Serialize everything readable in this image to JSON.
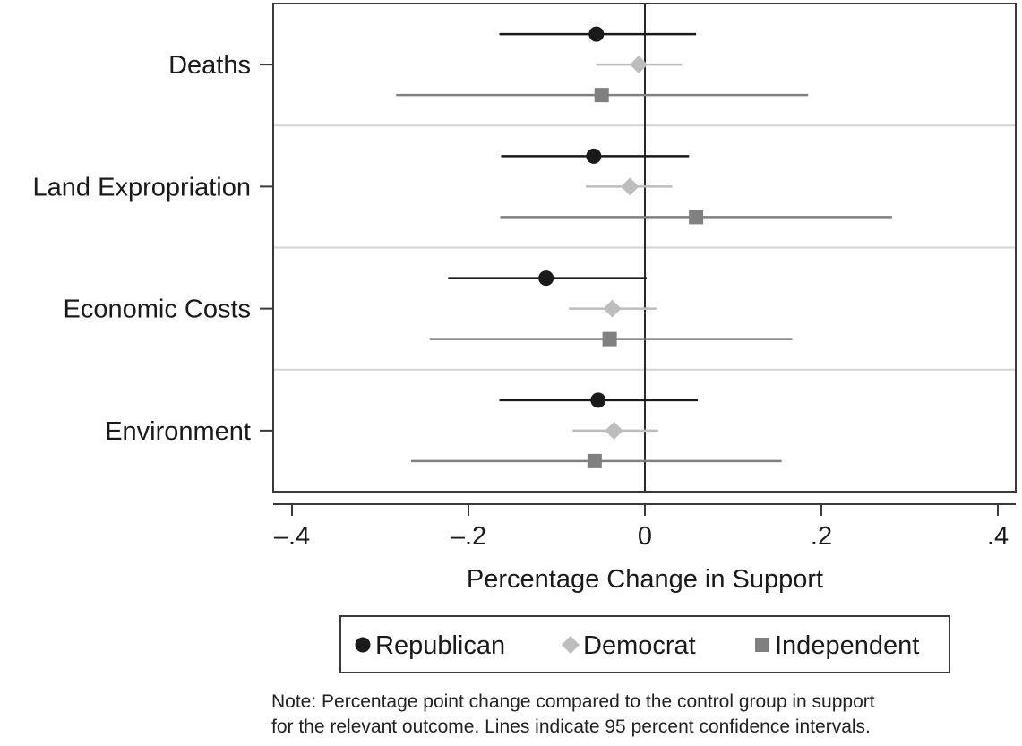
{
  "chart_data": {
    "type": "scatter",
    "subtype": "coefficient-plot-with-confidence-intervals",
    "xlabel": "Percentage Change in Support",
    "xlim": [
      -0.42,
      0.42
    ],
    "xticks": [
      {
        "value": -0.4,
        "label": "–.4"
      },
      {
        "value": -0.2,
        "label": "–.2"
      },
      {
        "value": 0,
        "label": "0"
      },
      {
        "value": 0.2,
        "label": ".2"
      },
      {
        "value": 0.4,
        "label": ".4"
      }
    ],
    "reference_line": 0,
    "categories": [
      "Deaths",
      "Land Expropriation",
      "Economic Costs",
      "Environment"
    ],
    "series": [
      {
        "name": "Republican",
        "marker": "circle",
        "color": "#1a1a1a",
        "values": [
          -0.055,
          -0.058,
          -0.112,
          -0.053
        ],
        "ci_low": [
          -0.165,
          -0.163,
          -0.223,
          -0.165
        ],
        "ci_high": [
          0.058,
          0.05,
          0.002,
          0.06
        ]
      },
      {
        "name": "Democrat",
        "marker": "diamond",
        "color": "#bdbdbd",
        "values": [
          -0.007,
          -0.017,
          -0.037,
          -0.035
        ],
        "ci_low": [
          -0.055,
          -0.067,
          -0.086,
          -0.082
        ],
        "ci_high": [
          0.042,
          0.031,
          0.013,
          0.015
        ]
      },
      {
        "name": "Independent",
        "marker": "square",
        "color": "#808080",
        "values": [
          -0.049,
          0.058,
          -0.04,
          -0.057
        ],
        "ci_low": [
          -0.282,
          -0.164,
          -0.244,
          -0.265
        ],
        "ci_high": [
          0.185,
          0.28,
          0.167,
          0.155
        ]
      }
    ],
    "legend_position": "bottom",
    "grid": false
  },
  "note": {
    "line1": "Note: Percentage point change compared to the control group in support",
    "line2": "for the relevant outcome. Lines indicate 95 percent confidence intervals."
  }
}
